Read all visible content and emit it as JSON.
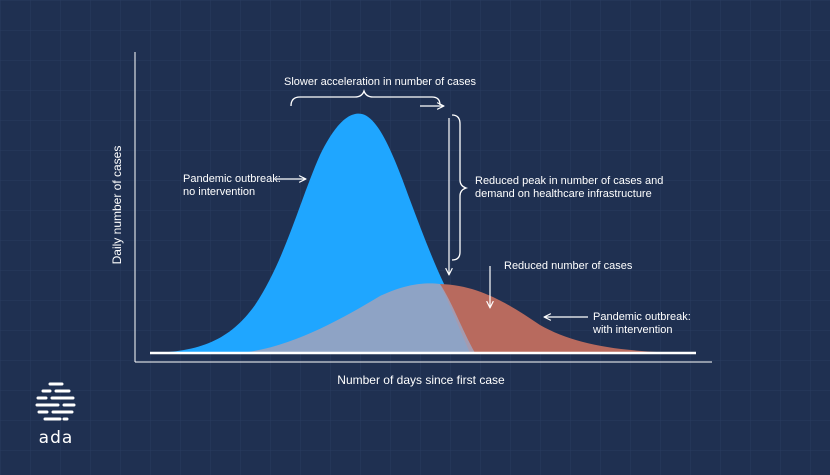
{
  "colors": {
    "background": "#1f3051",
    "grid": "#2b3d60",
    "no_intervention_curve": "#1fa6ff",
    "with_intervention_curve": "#9aa3bd",
    "reduced_cases_area": "#b86a5e",
    "lines": "#ffffff"
  },
  "annotations": {
    "slower_acceleration": "Slower acceleration in number of cases",
    "reduced_peak_line1": "Reduced peak in number of cases and",
    "reduced_peak_line2": "demand on healthcare infrastructure",
    "reduced_cases": "Reduced number of cases",
    "no_intervention_line1": "Pandemic outbreak:",
    "no_intervention_line2": "no intervention",
    "with_intervention_line1": "Pandemic outbreak:",
    "with_intervention_line2": "with intervention"
  },
  "axes": {
    "y_title": "Daily number of cases",
    "x_title": "Number of days since first case"
  },
  "logo": {
    "text": "ada",
    "icon": "ada-logo-icon"
  }
}
